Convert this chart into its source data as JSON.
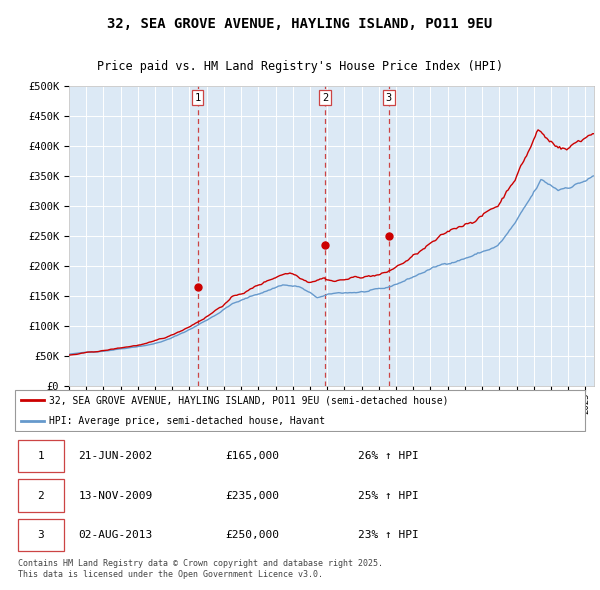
{
  "title": "32, SEA GROVE AVENUE, HAYLING ISLAND, PO11 9EU",
  "subtitle": "Price paid vs. HM Land Registry's House Price Index (HPI)",
  "legend_red": "32, SEA GROVE AVENUE, HAYLING ISLAND, PO11 9EU (semi-detached house)",
  "legend_blue": "HPI: Average price, semi-detached house, Havant",
  "footer": "Contains HM Land Registry data © Crown copyright and database right 2025.\nThis data is licensed under the Open Government Licence v3.0.",
  "transactions": [
    {
      "label": "1",
      "date": "21-JUN-2002",
      "price": 165000,
      "hpi_pct": "26% ↑ HPI",
      "x_year": 2002.47
    },
    {
      "label": "2",
      "date": "13-NOV-2009",
      "price": 235000,
      "hpi_pct": "25% ↑ HPI",
      "x_year": 2009.87
    },
    {
      "label": "3",
      "date": "02-AUG-2013",
      "price": 250000,
      "hpi_pct": "23% ↑ HPI",
      "x_year": 2013.58
    }
  ],
  "ylim": [
    0,
    500000
  ],
  "xlim_start": 1995.0,
  "xlim_end": 2025.5,
  "background_color": "#dce9f5",
  "red_color": "#cc0000",
  "blue_color": "#6699cc",
  "grid_color": "#ffffff",
  "dashed_color": "#cc0000"
}
